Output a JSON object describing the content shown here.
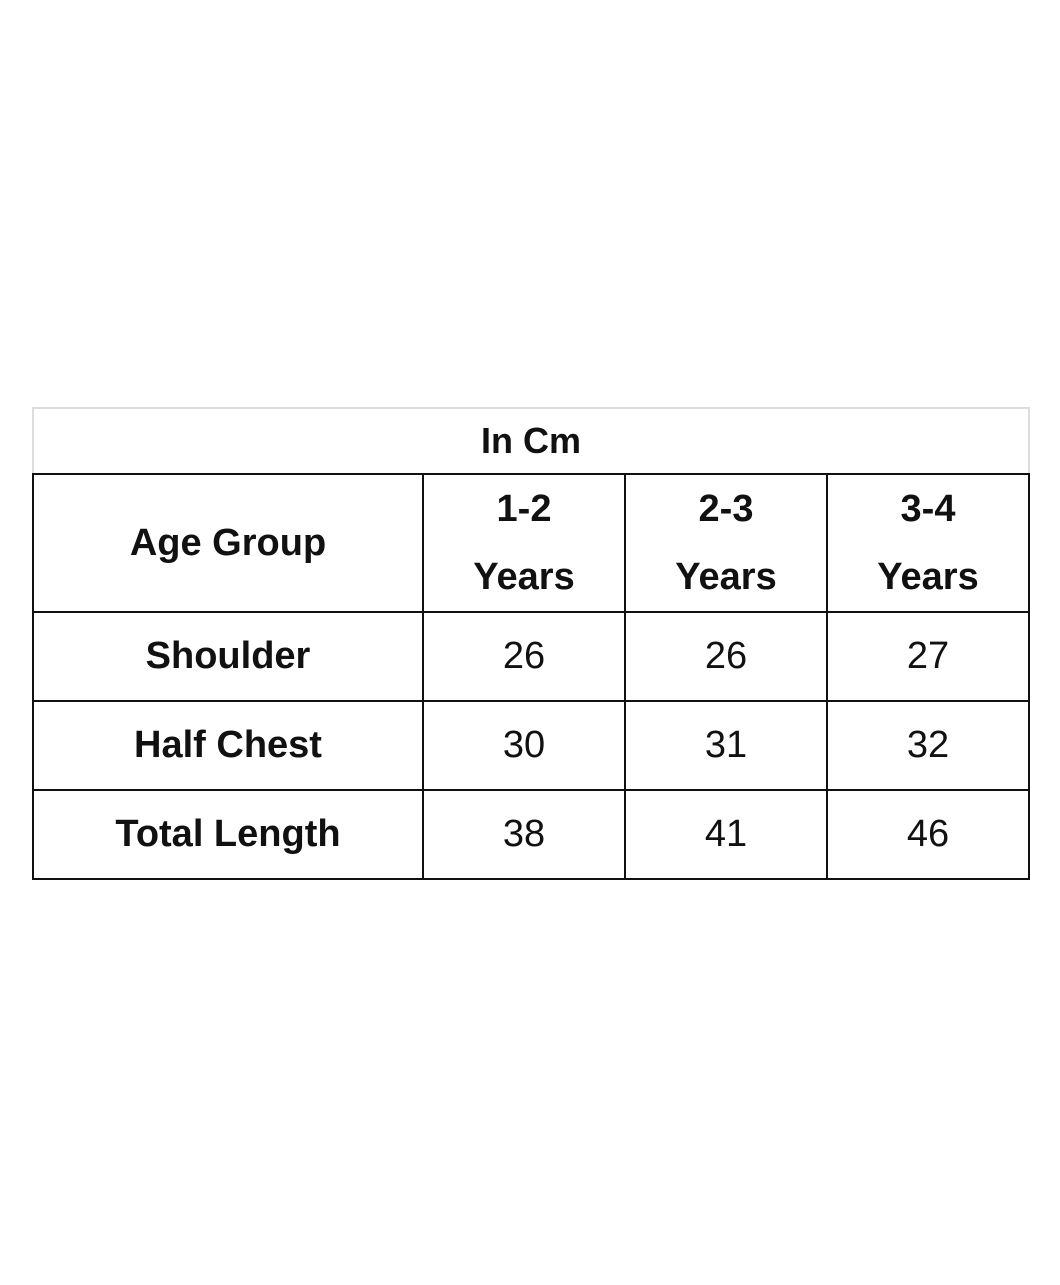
{
  "table": {
    "title": "In Cm",
    "header": [
      "Age Group",
      "1-2 Years",
      "2-3 Years",
      "3-4 Years"
    ],
    "rows": [
      [
        "Shoulder",
        26,
        26,
        27
      ],
      [
        "Half Chest",
        30,
        31,
        32
      ],
      [
        "Total Length",
        38,
        41,
        46
      ]
    ]
  }
}
